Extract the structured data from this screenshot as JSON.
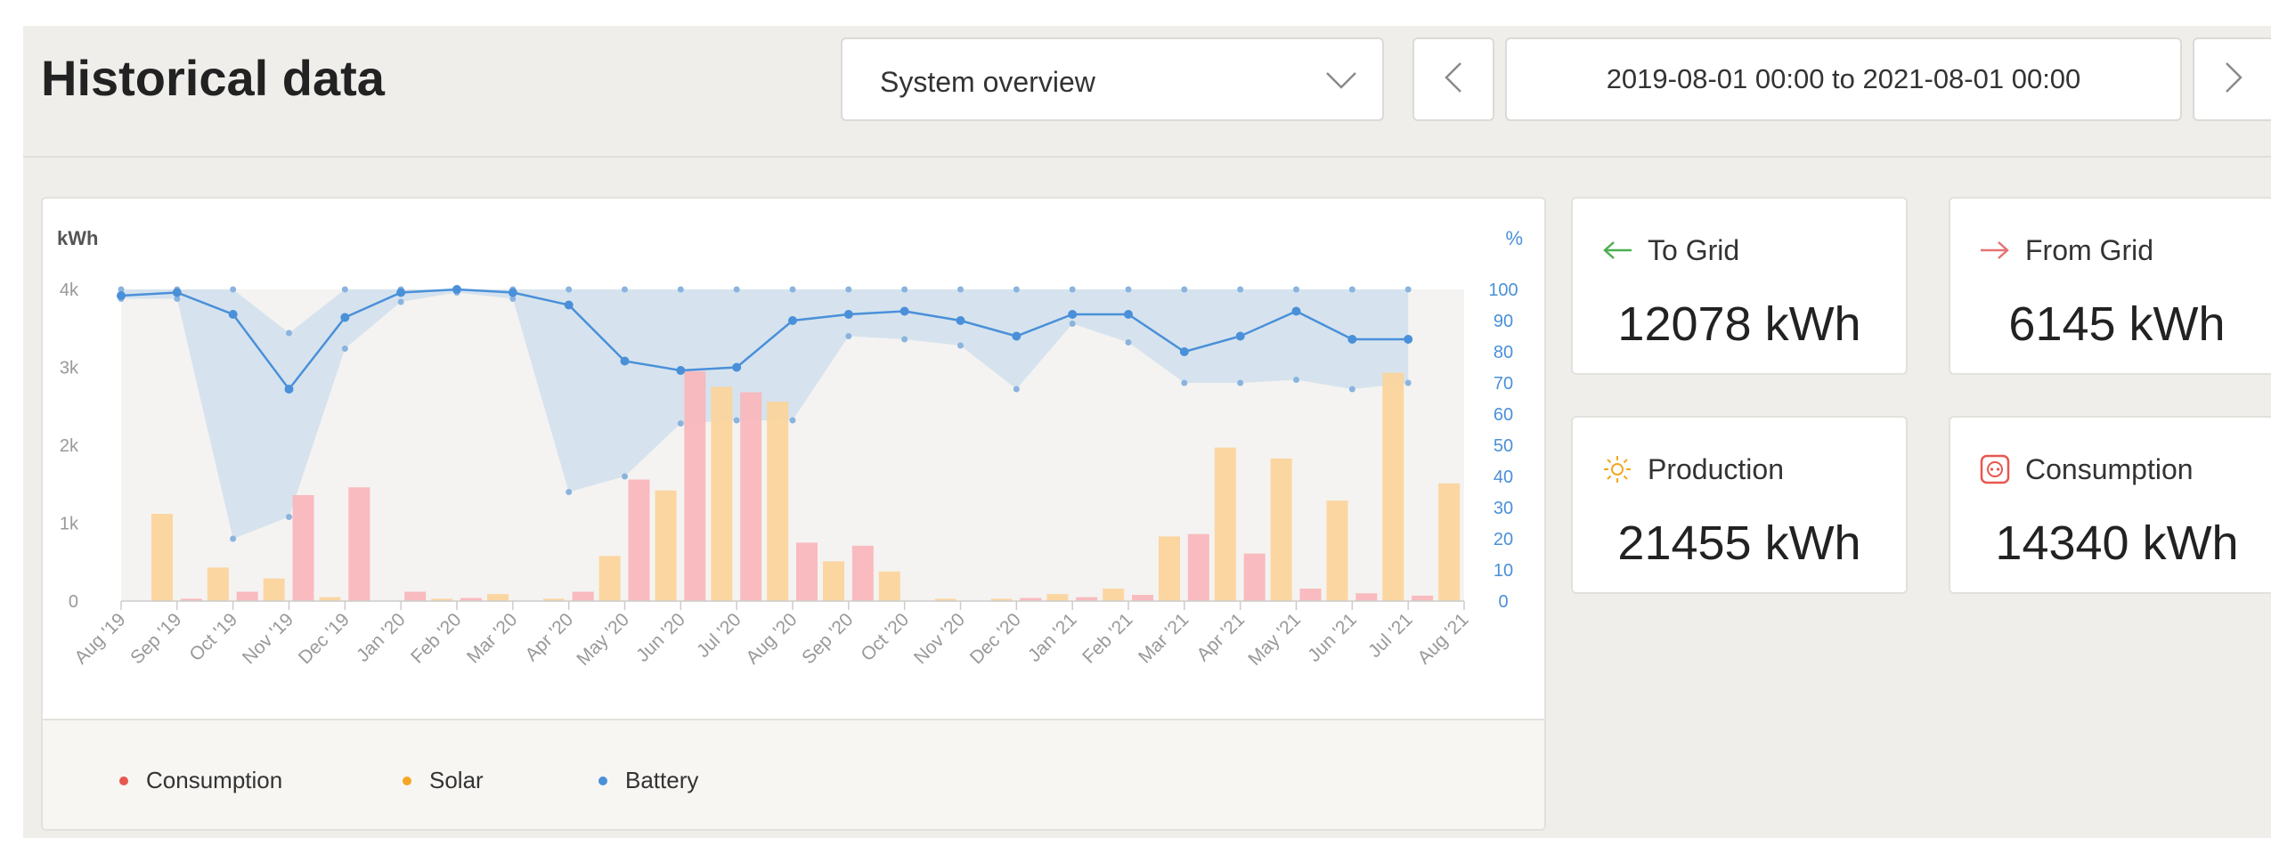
{
  "header": {
    "title": "Historical data",
    "view_select": "System overview",
    "date_range": "2019-08-01 00:00 to 2021-08-01 00:00"
  },
  "stats": {
    "to_grid": {
      "label": "To Grid",
      "value": "12078 kWh"
    },
    "from_grid": {
      "label": "From Grid",
      "value": "6145 kWh"
    },
    "production": {
      "label": "Production",
      "value": "21455 kWh"
    },
    "consumption": {
      "label": "Consumption",
      "value": "14340 kWh"
    }
  },
  "legend": {
    "consumption": "Consumption",
    "solar": "Solar",
    "battery": "Battery"
  },
  "colors": {
    "consumption": "#f8b6bb",
    "solar": "#fbd49a",
    "battery_line": "#4a90d9",
    "battery_band": "#d3e1ed",
    "to_grid_icon": "#4caf50",
    "from_grid_icon": "#e57373",
    "production_icon": "#f5a623",
    "consumption_icon": "#e8574f"
  },
  "chart_data": {
    "type": "bar",
    "title": "",
    "y_left_label": "kWh",
    "y_right_label": "%",
    "y_left_ticks": [
      "0",
      "1k",
      "2k",
      "3k",
      "4k"
    ],
    "y_left_range": [
      0,
      4000
    ],
    "y_right_ticks": [
      "0",
      "10",
      "20",
      "30",
      "40",
      "50",
      "60",
      "70",
      "80",
      "90",
      "100"
    ],
    "y_right_range": [
      0,
      100
    ],
    "categories": [
      "Aug '19",
      "Sep '19",
      "Oct '19",
      "Nov '19",
      "Dec '19",
      "Jan '20",
      "Feb '20",
      "Mar '20",
      "Apr '20",
      "May '20",
      "Jun '20",
      "Jul '20",
      "Aug '20",
      "Sep '20",
      "Oct '20",
      "Nov '20",
      "Dec '20",
      "Jan '21",
      "Feb '21",
      "Mar '21",
      "Apr '21",
      "May '21",
      "Jun '21",
      "Jul '21",
      "Aug '21"
    ],
    "series": [
      {
        "name": "Consumption",
        "axis": "left",
        "values": [
          0,
          30,
          120,
          1360,
          1460,
          120,
          40,
          0,
          120,
          1560,
          2950,
          2680,
          750,
          710,
          0,
          0,
          40,
          50,
          80,
          860,
          610,
          160,
          100,
          70,
          0
        ]
      },
      {
        "name": "Solar",
        "axis": "left",
        "values": [
          1120,
          430,
          290,
          50,
          0,
          30,
          90,
          30,
          580,
          1420,
          2750,
          2560,
          510,
          380,
          30,
          30,
          90,
          160,
          830,
          1970,
          1830,
          1290,
          2930,
          1510,
          0
        ]
      },
      {
        "name": "Battery",
        "axis": "right",
        "values": [
          98,
          99,
          92,
          68,
          91,
          99,
          100,
          99,
          95,
          77,
          74,
          75,
          90,
          92,
          93,
          90,
          85,
          92,
          92,
          80,
          85,
          93,
          84,
          84,
          null
        ]
      },
      {
        "name": "Battery max",
        "axis": "right",
        "values": [
          100,
          100,
          100,
          86,
          100,
          100,
          100,
          100,
          100,
          100,
          100,
          100,
          100,
          100,
          100,
          100,
          100,
          100,
          100,
          100,
          100,
          100,
          100,
          100,
          null
        ]
      },
      {
        "name": "Battery min",
        "axis": "right",
        "values": [
          97,
          97,
          20,
          27,
          81,
          96,
          99,
          97,
          35,
          40,
          57,
          58,
          58,
          85,
          84,
          82,
          68,
          89,
          83,
          70,
          70,
          71,
          68,
          70,
          null
        ]
      }
    ]
  }
}
